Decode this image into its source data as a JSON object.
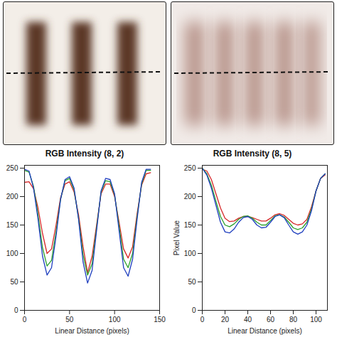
{
  "chart_data": [
    {
      "type": "line",
      "title": "RGB Intensity (8, 2)",
      "x_label": "Linear Distance (pixels)",
      "x": [
        0,
        5,
        10,
        15,
        20,
        25,
        30,
        35,
        40,
        45,
        50,
        55,
        60,
        65,
        70,
        75,
        80,
        85,
        90,
        95,
        100,
        105,
        110,
        115,
        120,
        125,
        130,
        135,
        140
      ],
      "series": [
        {
          "color": "#d62728",
          "values": [
            225,
            226,
            214,
            180,
            135,
            100,
            108,
            150,
            198,
            222,
            226,
            208,
            168,
            112,
            66,
            95,
            150,
            205,
            222,
            222,
            200,
            155,
            108,
            92,
            112,
            170,
            220,
            240,
            242
          ]
        },
        {
          "color": "#2ca02c",
          "values": [
            246,
            243,
            218,
            168,
            110,
            78,
            88,
            138,
            195,
            228,
            232,
            212,
            162,
            98,
            62,
            82,
            145,
            208,
            228,
            226,
            203,
            148,
            90,
            75,
            100,
            165,
            222,
            246,
            246
          ]
        },
        {
          "color": "#1f3fbf",
          "values": [
            248,
            245,
            215,
            160,
            95,
            62,
            75,
            130,
            195,
            230,
            235,
            215,
            160,
            85,
            48,
            70,
            140,
            210,
            232,
            230,
            205,
            140,
            75,
            60,
            90,
            160,
            225,
            248,
            248
          ]
        }
      ],
      "xlim": [
        0,
        150
      ],
      "xticks": [
        0,
        50,
        100,
        150
      ],
      "ylim": [
        0,
        255
      ],
      "yticks": [
        0,
        50,
        100,
        150,
        200,
        250
      ],
      "grid": false
    },
    {
      "type": "line",
      "title": "RGB Intensity (8, 5)",
      "x_label": "Linear Distance (pixels)",
      "y_label": "Pixel Value",
      "x": [
        0,
        4,
        8,
        12,
        16,
        20,
        24,
        28,
        32,
        36,
        40,
        44,
        48,
        52,
        56,
        60,
        64,
        68,
        72,
        76,
        80,
        84,
        88,
        92,
        96,
        100,
        104,
        108
      ],
      "series": [
        {
          "color": "#d62728",
          "values": [
            248,
            245,
            230,
            205,
            180,
            162,
            156,
            157,
            162,
            165,
            165,
            163,
            160,
            157,
            157,
            162,
            168,
            170,
            167,
            160,
            153,
            150,
            152,
            160,
            182,
            210,
            232,
            238
          ]
        },
        {
          "color": "#2ca02c",
          "values": [
            250,
            240,
            220,
            192,
            165,
            150,
            147,
            152,
            160,
            165,
            166,
            162,
            155,
            150,
            150,
            158,
            166,
            168,
            164,
            155,
            145,
            142,
            145,
            155,
            178,
            210,
            232,
            240
          ]
        },
        {
          "color": "#1f3fbf",
          "values": [
            250,
            238,
            215,
            185,
            155,
            138,
            136,
            143,
            155,
            163,
            165,
            160,
            150,
            145,
            146,
            155,
            165,
            168,
            163,
            150,
            138,
            134,
            138,
            150,
            175,
            210,
            232,
            240
          ]
        }
      ],
      "xlim": [
        0,
        110
      ],
      "xticks": [
        0,
        20,
        40,
        60,
        80,
        100
      ],
      "ylim": [
        0,
        255
      ],
      "yticks": [
        0,
        50,
        100,
        150,
        200,
        250
      ],
      "grid": false
    }
  ]
}
